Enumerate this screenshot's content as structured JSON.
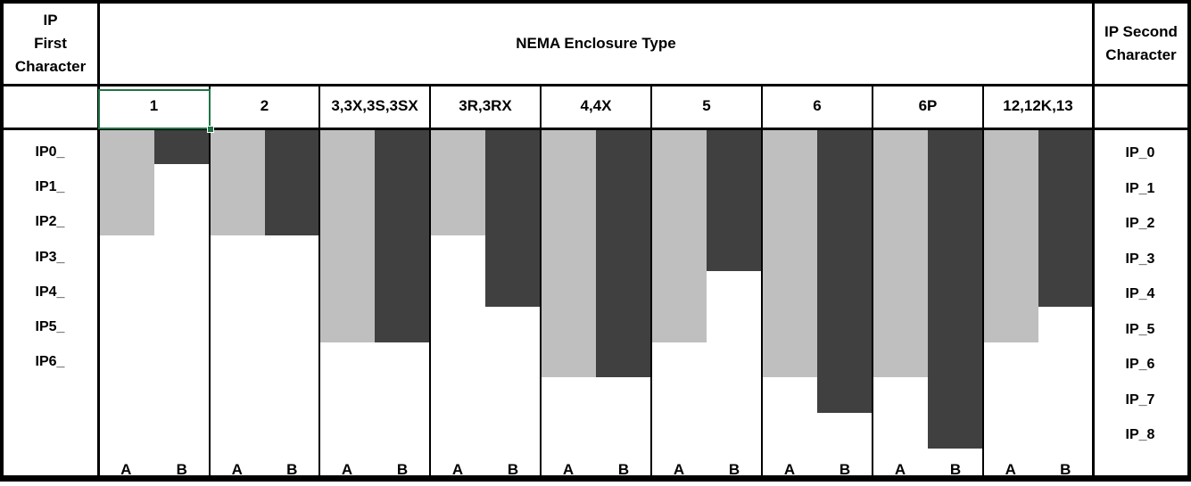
{
  "title_cells": {
    "left": "IP\nFirst\nCharacter",
    "center": "NEMA Enclosure Type",
    "right": "IP Second\nCharacter"
  },
  "chart_data": {
    "type": "bar",
    "subtype": "downward range bars drawn in a spreadsheet grid; each bar starts at the top row and extends down to the deepest IP rating row covered",
    "categories": [
      "1",
      "2",
      "3,3X,3S,3SX",
      "3R,3RX",
      "4,4X",
      "5",
      "6",
      "6P",
      "12,12K,13"
    ],
    "series": [
      {
        "name": "A",
        "axis": "IP first character (left labels)",
        "color": "#BFBFBF",
        "values": [
          2,
          2,
          5,
          2,
          6,
          5,
          6,
          6,
          5
        ]
      },
      {
        "name": "B",
        "axis": "IP second character (right labels)",
        "color": "#404040",
        "values": [
          0,
          2,
          5,
          4,
          6,
          3,
          7,
          8,
          4
        ]
      }
    ],
    "values_note": "value = index of deepest IP row reached by the bar (e.g. NEMA 1: A reaches IP2_, B reaches IP_0)",
    "left_axis_labels": [
      "IP0_",
      "IP1_",
      "IP2_",
      "IP3_",
      "IP4_",
      "IP5_",
      "IP6_"
    ],
    "right_axis_labels": [
      "IP_0",
      "IP_1",
      "IP_2",
      "IP_3",
      "IP_4",
      "IP_5",
      "IP_6",
      "IP_7",
      "IP_8"
    ],
    "bar_footer_labels": [
      "A",
      "B"
    ],
    "grid": "black spreadsheet borders",
    "legend": "none"
  },
  "selection": {
    "selected_header_cell": "1",
    "border_color": "#217346"
  },
  "colors": {
    "bar_a": "#BFBFBF",
    "bar_b": "#404040",
    "grid": "#000000",
    "background": "#FFFFFF"
  }
}
